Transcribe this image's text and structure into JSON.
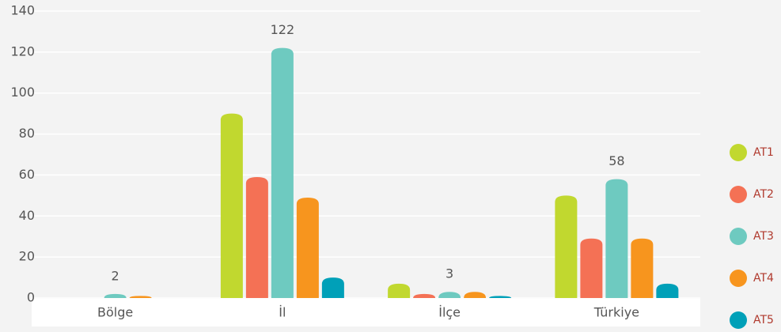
{
  "chart_data": {
    "type": "bar",
    "categories": [
      "Bölge",
      "İl",
      "İlçe",
      "Türkiye"
    ],
    "series": [
      {
        "name": "AT1",
        "color": "#c1d82f",
        "values": [
          0,
          90,
          7,
          50
        ]
      },
      {
        "name": "AT2",
        "color": "#f47155",
        "values": [
          0,
          59,
          2,
          29
        ]
      },
      {
        "name": "AT3",
        "color": "#6ecac0",
        "values": [
          2,
          122,
          3,
          58
        ],
        "show_values": true
      },
      {
        "name": "AT4",
        "color": "#f7951e",
        "values": [
          1,
          49,
          3,
          29
        ]
      },
      {
        "name": "AT5",
        "color": "#00a0b8",
        "values": [
          0,
          10,
          1,
          7
        ]
      }
    ],
    "ylim": [
      0,
      140
    ],
    "yticks": [
      0,
      20,
      40,
      60,
      80,
      100,
      120,
      140
    ],
    "grid": true,
    "legend": "right"
  }
}
